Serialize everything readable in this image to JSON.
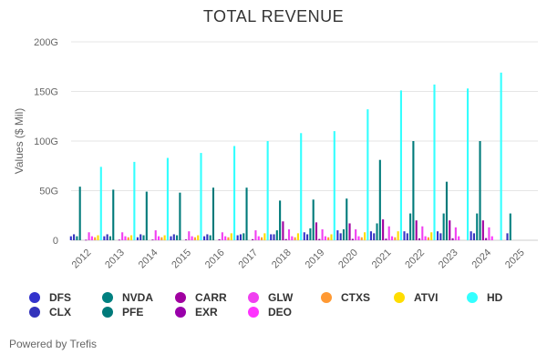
{
  "chart_data": {
    "type": "bar",
    "title": "TOTAL REVENUE",
    "ylabel": "Values ($ Mil)",
    "xlabel": "",
    "ylim": [
      0,
      200
    ],
    "yticks": [
      0,
      50,
      100,
      150,
      200
    ],
    "ytick_labels": [
      "0",
      "50G",
      "100G",
      "150G",
      "200G"
    ],
    "grid": true,
    "legend_position": "bottom",
    "categories": [
      "2012",
      "2013",
      "2014",
      "2015",
      "2016",
      "2017",
      "2018",
      "2019",
      "2020",
      "2021",
      "2022",
      "2023",
      "2024",
      "2025"
    ],
    "series": [
      {
        "name": "DFS",
        "color": "#3333cc",
        "values": [
          4,
          4,
          3,
          4,
          4,
          5,
          6,
          8,
          10,
          9,
          9,
          9,
          9,
          null
        ]
      },
      {
        "name": "CLX",
        "color": "#3333bb",
        "values": [
          6,
          6,
          6,
          6,
          6,
          6,
          6,
          6,
          7,
          7,
          7,
          7,
          7,
          7
        ]
      },
      {
        "name": "NVDA",
        "color": "#008080",
        "values": [
          4,
          4,
          5,
          5,
          5,
          7,
          10,
          12,
          11,
          17,
          27,
          27,
          27,
          27
        ]
      },
      {
        "name": "PFE",
        "color": "#007a7a",
        "values": [
          54,
          51,
          49,
          48,
          53,
          53,
          40,
          41,
          42,
          81,
          100,
          59,
          100,
          null
        ]
      },
      {
        "name": "CARR",
        "color": "#a000a0",
        "values": [
          null,
          null,
          null,
          null,
          null,
          null,
          19,
          18,
          17,
          21,
          20,
          20,
          20,
          null
        ]
      },
      {
        "name": "EXR",
        "color": "#9900aa",
        "values": [
          0.5,
          0.6,
          0.7,
          0.8,
          1,
          1.1,
          1.2,
          1.3,
          1.4,
          1.6,
          1.9,
          2.0,
          2.2,
          null
        ]
      },
      {
        "name": "GLW",
        "color": "#f040f0",
        "values": [
          8,
          8,
          10,
          9,
          8,
          10,
          11,
          11,
          11,
          14,
          14,
          13,
          13,
          null
        ]
      },
      {
        "name": "DEO",
        "color": "#ff33ff",
        "values": [
          4,
          4,
          4,
          4,
          4,
          4,
          4,
          4,
          4,
          4,
          4,
          4,
          4,
          null
        ]
      },
      {
        "name": "CTXS",
        "color": "#ff9933",
        "values": [
          3,
          3,
          3,
          3,
          3,
          3,
          3,
          3,
          3,
          3,
          3,
          null,
          null,
          null
        ]
      },
      {
        "name": "ATVI",
        "color": "#ffdd00",
        "values": [
          5,
          5,
          5,
          5,
          7,
          7,
          7,
          6,
          8,
          9,
          8,
          null,
          null,
          null
        ]
      },
      {
        "name": "HD",
        "color": "#33ffff",
        "values": [
          74,
          79,
          83,
          88,
          95,
          100,
          108,
          110,
          132,
          151,
          157,
          153,
          169,
          null
        ]
      }
    ]
  },
  "legend_rows": [
    [
      "DFS",
      "NVDA",
      "CARR",
      "GLW",
      "CTXS",
      "ATVI",
      "HD"
    ],
    [
      "CLX",
      "PFE",
      "EXR",
      "DEO"
    ]
  ],
  "footer": {
    "credit": "Powered by Trefis"
  }
}
